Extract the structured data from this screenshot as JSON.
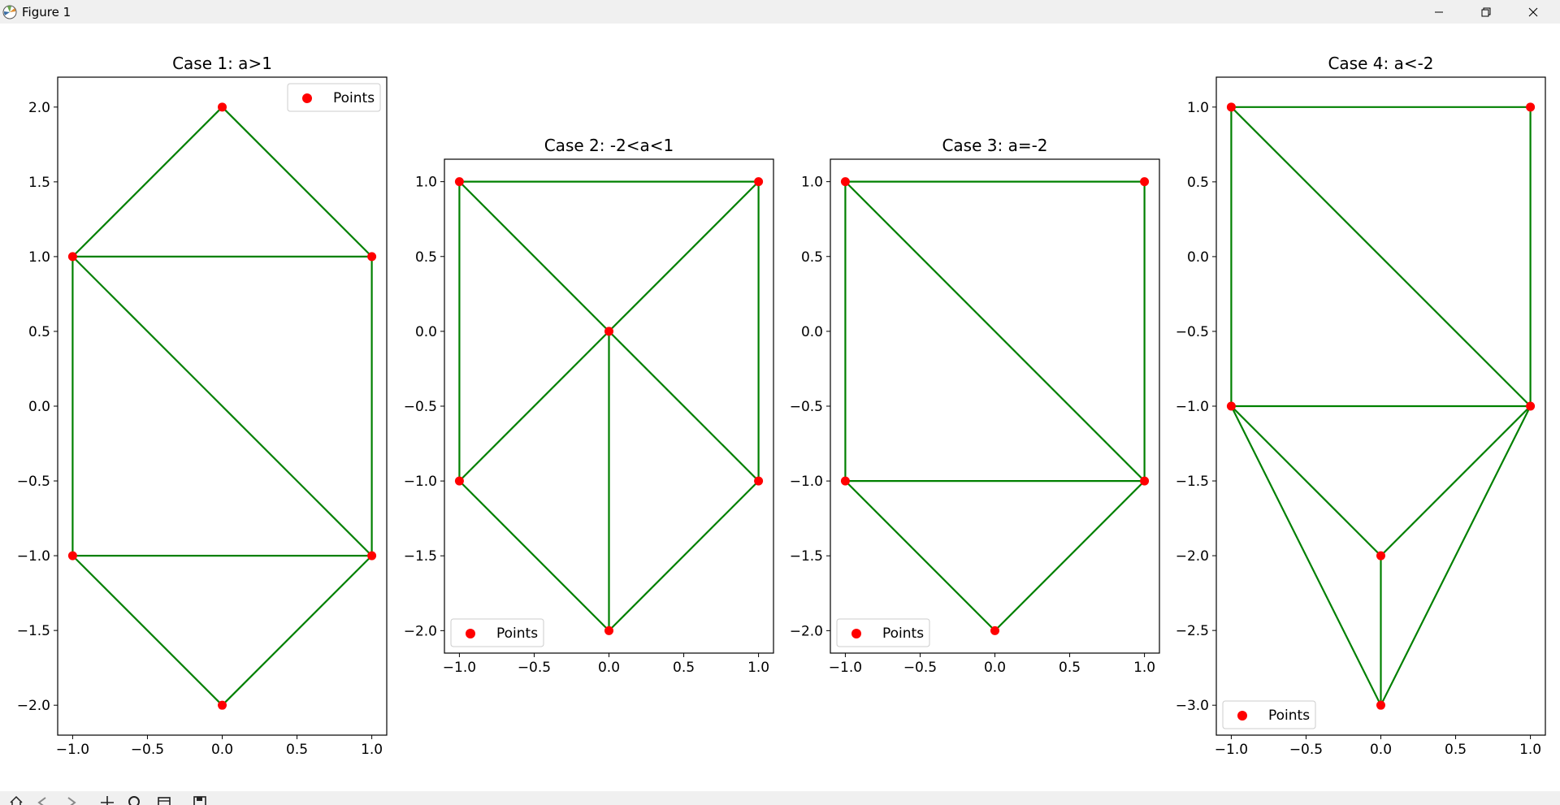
{
  "window": {
    "title": "Figure 1",
    "minimize_icon": "minimize-icon",
    "maximize_icon": "restore-icon",
    "close_icon": "close-icon"
  },
  "toolbar": {
    "icons": [
      "home-icon",
      "back-icon",
      "forward-icon",
      "pan-icon",
      "zoom-icon",
      "configure-subplots-icon",
      "save-icon"
    ]
  },
  "colors": {
    "points": "#ff0000",
    "edges": "#008000",
    "background": "#ffffff",
    "chrome": "#f0f0f0"
  },
  "chart_data": [
    {
      "type": "scatter",
      "title": "Case 1: a>1",
      "legend": "Points",
      "legend_loc": "upper right",
      "xlim": [
        -1.1,
        1.1
      ],
      "ylim": [
        -2.2,
        2.2
      ],
      "xticks": [
        -1.0,
        -0.5,
        0.0,
        0.5,
        1.0
      ],
      "xticklabels": [
        "−1.0",
        "−0.5",
        "0.0",
        "0.5",
        "1.0"
      ],
      "yticks": [
        2.0,
        1.5,
        1.0,
        0.5,
        0.0,
        -0.5,
        -1.0,
        -1.5,
        -2.0
      ],
      "yticklabels": [
        "2.0",
        "1.5",
        "1.0",
        "0.5",
        "0.0",
        "−0.5",
        "−1.0",
        "−1.5",
        "−2.0"
      ],
      "points": [
        [
          0,
          2
        ],
        [
          -1,
          1
        ],
        [
          1,
          1
        ],
        [
          -1,
          -1
        ],
        [
          1,
          -1
        ],
        [
          0,
          -2
        ]
      ],
      "edges": [
        [
          [
            0,
            2
          ],
          [
            -1,
            1
          ]
        ],
        [
          [
            0,
            2
          ],
          [
            1,
            1
          ]
        ],
        [
          [
            -1,
            1
          ],
          [
            1,
            1
          ]
        ],
        [
          [
            -1,
            1
          ],
          [
            -1,
            -1
          ]
        ],
        [
          [
            1,
            1
          ],
          [
            1,
            -1
          ]
        ],
        [
          [
            -1,
            1
          ],
          [
            1,
            -1
          ]
        ],
        [
          [
            -1,
            -1
          ],
          [
            1,
            -1
          ]
        ],
        [
          [
            -1,
            -1
          ],
          [
            0,
            -2
          ]
        ],
        [
          [
            1,
            -1
          ],
          [
            0,
            -2
          ]
        ]
      ]
    },
    {
      "type": "scatter",
      "title": "Case 2: -2<a<1",
      "legend": "Points",
      "legend_loc": "lower left",
      "xlim": [
        -1.1,
        1.1
      ],
      "ylim": [
        -2.15,
        1.15
      ],
      "xticks": [
        -1.0,
        -0.5,
        0.0,
        0.5,
        1.0
      ],
      "xticklabels": [
        "−1.0",
        "−0.5",
        "0.0",
        "0.5",
        "1.0"
      ],
      "yticks": [
        1.0,
        0.5,
        0.0,
        -0.5,
        -1.0,
        -1.5,
        -2.0
      ],
      "yticklabels": [
        "1.0",
        "0.5",
        "0.0",
        "−0.5",
        "−1.0",
        "−1.5",
        "−2.0"
      ],
      "points": [
        [
          -1,
          1
        ],
        [
          1,
          1
        ],
        [
          0,
          0
        ],
        [
          -1,
          -1
        ],
        [
          1,
          -1
        ],
        [
          0,
          -2
        ]
      ],
      "edges": [
        [
          [
            -1,
            1
          ],
          [
            1,
            1
          ]
        ],
        [
          [
            -1,
            1
          ],
          [
            -1,
            -1
          ]
        ],
        [
          [
            1,
            1
          ],
          [
            1,
            -1
          ]
        ],
        [
          [
            -1,
            1
          ],
          [
            0,
            0
          ]
        ],
        [
          [
            1,
            1
          ],
          [
            0,
            0
          ]
        ],
        [
          [
            0,
            0
          ],
          [
            -1,
            -1
          ]
        ],
        [
          [
            0,
            0
          ],
          [
            1,
            -1
          ]
        ],
        [
          [
            0,
            0
          ],
          [
            0,
            -2
          ]
        ],
        [
          [
            -1,
            -1
          ],
          [
            0,
            -2
          ]
        ],
        [
          [
            1,
            -1
          ],
          [
            0,
            -2
          ]
        ]
      ]
    },
    {
      "type": "scatter",
      "title": "Case 3: a=-2",
      "legend": "Points",
      "legend_loc": "lower left",
      "xlim": [
        -1.1,
        1.1
      ],
      "ylim": [
        -2.15,
        1.15
      ],
      "xticks": [
        -1.0,
        -0.5,
        0.0,
        0.5,
        1.0
      ],
      "xticklabels": [
        "−1.0",
        "−0.5",
        "0.0",
        "0.5",
        "1.0"
      ],
      "yticks": [
        1.0,
        0.5,
        0.0,
        -0.5,
        -1.0,
        -1.5,
        -2.0
      ],
      "yticklabels": [
        "1.0",
        "0.5",
        "0.0",
        "−0.5",
        "−1.0",
        "−1.5",
        "−2.0"
      ],
      "points": [
        [
          -1,
          1
        ],
        [
          1,
          1
        ],
        [
          -1,
          -1
        ],
        [
          1,
          -1
        ],
        [
          0,
          -2
        ]
      ],
      "edges": [
        [
          [
            -1,
            1
          ],
          [
            1,
            1
          ]
        ],
        [
          [
            -1,
            1
          ],
          [
            -1,
            -1
          ]
        ],
        [
          [
            1,
            1
          ],
          [
            1,
            -1
          ]
        ],
        [
          [
            -1,
            1
          ],
          [
            1,
            -1
          ]
        ],
        [
          [
            -1,
            -1
          ],
          [
            1,
            -1
          ]
        ],
        [
          [
            -1,
            -1
          ],
          [
            0,
            -2
          ]
        ],
        [
          [
            1,
            -1
          ],
          [
            0,
            -2
          ]
        ]
      ]
    },
    {
      "type": "scatter",
      "title": "Case 4: a<-2",
      "legend": "Points",
      "legend_loc": "lower left",
      "xlim": [
        -1.1,
        1.1
      ],
      "ylim": [
        -3.2,
        1.2
      ],
      "xticks": [
        -1.0,
        -0.5,
        0.0,
        0.5,
        1.0
      ],
      "xticklabels": [
        "−1.0",
        "−0.5",
        "0.0",
        "0.5",
        "1.0"
      ],
      "yticks": [
        1.0,
        0.5,
        0.0,
        -0.5,
        -1.0,
        -1.5,
        -2.0,
        -2.5,
        -3.0
      ],
      "yticklabels": [
        "1.0",
        "0.5",
        "0.0",
        "−0.5",
        "−1.0",
        "−1.5",
        "−2.0",
        "−2.5",
        "−3.0"
      ],
      "points": [
        [
          -1,
          1
        ],
        [
          1,
          1
        ],
        [
          -1,
          -1
        ],
        [
          1,
          -1
        ],
        [
          0,
          -2
        ],
        [
          0,
          -3
        ]
      ],
      "edges": [
        [
          [
            -1,
            1
          ],
          [
            1,
            1
          ]
        ],
        [
          [
            -1,
            1
          ],
          [
            -1,
            -1
          ]
        ],
        [
          [
            1,
            1
          ],
          [
            1,
            -1
          ]
        ],
        [
          [
            -1,
            1
          ],
          [
            1,
            -1
          ]
        ],
        [
          [
            -1,
            -1
          ],
          [
            1,
            -1
          ]
        ],
        [
          [
            -1,
            -1
          ],
          [
            0,
            -2
          ]
        ],
        [
          [
            1,
            -1
          ],
          [
            0,
            -2
          ]
        ],
        [
          [
            -1,
            -1
          ],
          [
            0,
            -3
          ]
        ],
        [
          [
            1,
            -1
          ],
          [
            0,
            -3
          ]
        ],
        [
          [
            0,
            -2
          ],
          [
            0,
            -3
          ]
        ]
      ]
    }
  ]
}
